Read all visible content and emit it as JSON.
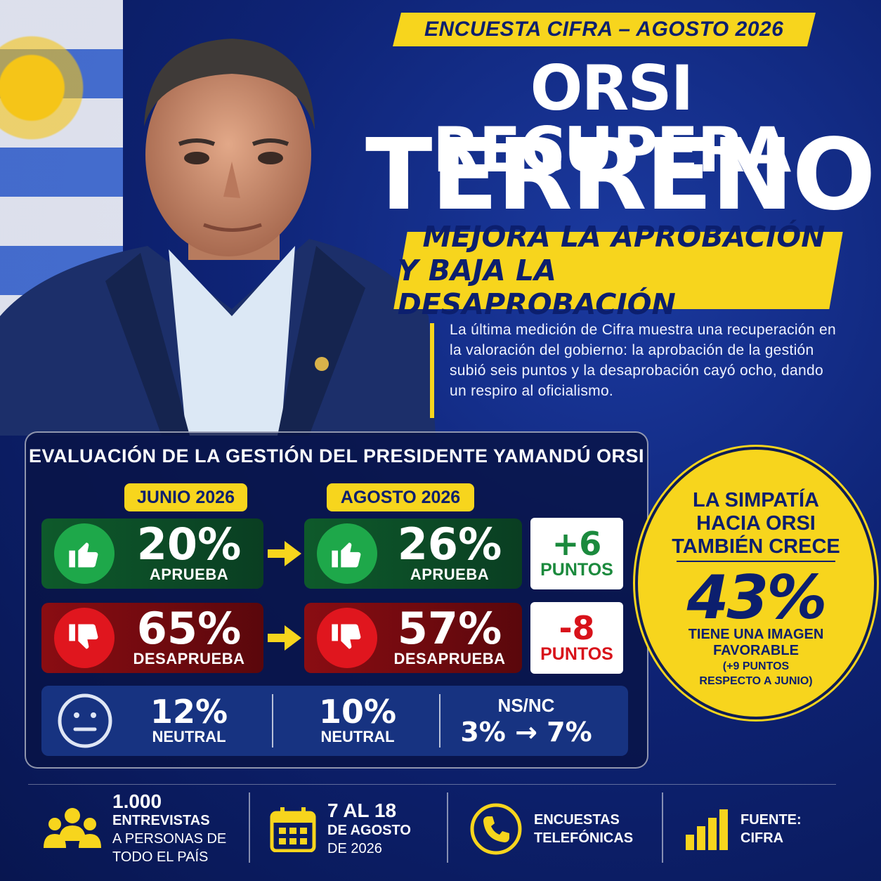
{
  "header": {
    "survey_tag": "ENCUESTA CIFRA – AGOSTO 2026",
    "headline_line1": "ORSI RECUPERA",
    "headline_line2": "TERRENO",
    "subhead_line1": "MEJORA LA APROBACIÓN",
    "subhead_line2": "Y BAJA LA DESAPROBACIÓN",
    "lead": "La última medición de Cifra muestra una recuperación en la valoración del gobierno: la aprobación de la gestión subió seis puntos y la desaprobación cayó ocho, dando un respiro al oficialismo."
  },
  "panel": {
    "title": "EVALUACIÓN DE LA GESTIÓN DEL PRESIDENTE YAMANDÚ ORSI",
    "period_jun": "JUNIO 2026",
    "period_ago": "AGOSTO 2026",
    "approve": {
      "jun": "20%",
      "ago": "26%",
      "label": "APRUEBA",
      "delta": "+6",
      "delta_label": "PUNTOS"
    },
    "disapprove": {
      "jun": "65%",
      "ago": "57%",
      "label": "DESAPRUEBA",
      "delta": "-8",
      "delta_label": "PUNTOS"
    },
    "neutral": {
      "jun": "12%",
      "ago": "10%",
      "label": "NEUTRAL"
    },
    "nsnc": {
      "label": "NS/NC",
      "value": "3% → 7%"
    }
  },
  "badge": {
    "title_line1": "LA SIMPATÍA",
    "title_line2": "HACIA ORSI",
    "title_line3": "TAMBIÉN CRECE",
    "value": "43%",
    "desc_line1": "TIENE UNA IMAGEN",
    "desc_line2": "FAVORABLE",
    "note_line1": "(+9 PUNTOS",
    "note_line2": "RESPECTO A JUNIO)"
  },
  "footer": {
    "sample_bold": "1.000",
    "sample_line2": "ENTREVISTAS",
    "sample_line3": "A PERSONAS DE",
    "sample_line4": "TODO EL PAÍS",
    "date_line1": "7 AL 18",
    "date_line2": "DE AGOSTO",
    "date_line3": "DE 2026",
    "method_line1": "ENCUESTAS",
    "method_line2": "TELEFÓNICAS",
    "source_line1": "FUENTE:",
    "source_line2": "CIFRA"
  },
  "colors": {
    "yellow": "#f7d51d",
    "navy": "#0c1f6e",
    "green": "#1ea84a",
    "red": "#e0161e"
  },
  "icons": [
    "thumbs-up-icon",
    "thumbs-down-icon",
    "arrow-right-icon",
    "neutral-face-icon",
    "people-icon",
    "calendar-icon",
    "phone-icon",
    "bar-chart-icon"
  ]
}
